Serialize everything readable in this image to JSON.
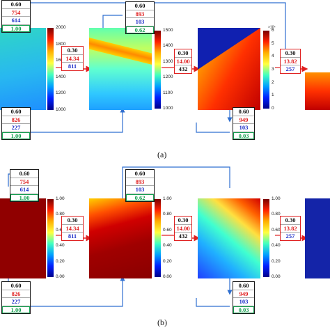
{
  "figure": {
    "panels": [
      {
        "caption": "(a)",
        "left_top_box": [
          "0.60",
          "754",
          "614",
          "1.00"
        ],
        "left_bottom_box": [
          "0.60",
          "826",
          "227",
          "1.00"
        ],
        "mid_top_box": [
          "0.60",
          "893",
          "103",
          "0.62"
        ],
        "right_bottom_box": [
          "0.60",
          "949",
          "103",
          "0.03"
        ],
        "arrow_boxes": [
          [
            "0.30",
            "14.34",
            "811"
          ],
          [
            "0.30",
            "14.00",
            "432"
          ],
          [
            "0.30",
            "13.82",
            "257"
          ]
        ],
        "colorbars": [
          {
            "ticks": [
              "2000",
              "1800",
              "1600",
              "1400",
              "1200",
              "1000"
            ],
            "exponent": ""
          },
          {
            "ticks": [
              "1500",
              "1400",
              "1300",
              "1200",
              "1100",
              "1000"
            ],
            "exponent": ""
          },
          {
            "ticks": [
              "6",
              "5",
              "4",
              "3",
              "2",
              "1",
              "0"
            ],
            "exponent": "×10⁴"
          }
        ]
      },
      {
        "caption": "(b)",
        "left_top_box": [
          "0.60",
          "754",
          "614",
          "1.00"
        ],
        "left_bottom_box": [
          "0.60",
          "826",
          "227",
          "1.00"
        ],
        "mid_top_box": [
          "0.60",
          "893",
          "103",
          "0.62"
        ],
        "right_bottom_box": [
          "0.60",
          "949",
          "103",
          "0.03"
        ],
        "arrow_boxes": [
          [
            "0.30",
            "14.34",
            "811"
          ],
          [
            "0.30",
            "14.00",
            "432"
          ],
          [
            "0.30",
            "13.82",
            "257"
          ]
        ],
        "colorbars": [
          {
            "ticks": [
              "1.00",
              "0.80",
              "0.60",
              "0.40",
              "0.20",
              "0.00"
            ],
            "exponent": ""
          },
          {
            "ticks": [
              "1.00",
              "0.80",
              "0.60",
              "0.40",
              "0.20",
              "0.00"
            ],
            "exponent": ""
          },
          {
            "ticks": [
              "1.00",
              "0.80",
              "0.60",
              "0.40",
              "0.20",
              "0.00"
            ],
            "exponent": ""
          }
        ]
      }
    ],
    "colors": {
      "red": "#e02020",
      "blue": "#1c2ec8",
      "green": "#14a050",
      "link": "#2f6fd0"
    }
  }
}
